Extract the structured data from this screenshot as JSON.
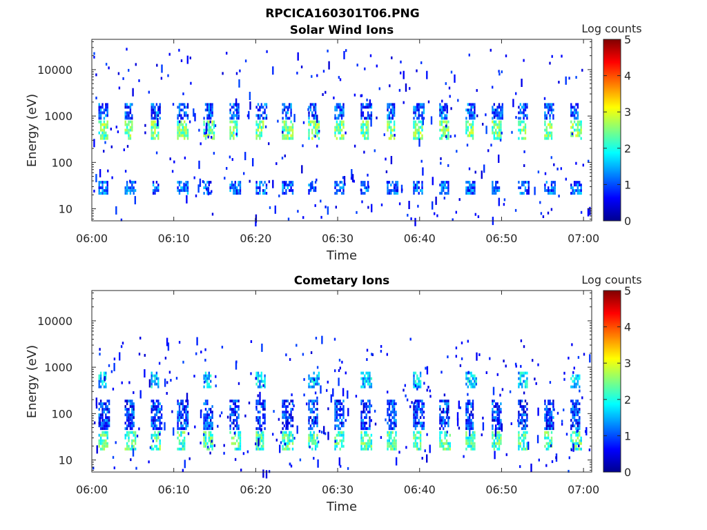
{
  "figure": {
    "title": "RPCICA160301T06.PNG"
  },
  "chart_data": [
    {
      "type": "heatmap",
      "title": "Solar Wind Ions",
      "xlabel": "Time",
      "ylabel": "Energy (eV)",
      "x_tick_labels": [
        "06:00",
        "06:10",
        "06:20",
        "06:30",
        "06:40",
        "06:50",
        "07:00"
      ],
      "x_tick_minutes": [
        0,
        10,
        20,
        30,
        40,
        50,
        60
      ],
      "xlim_minutes": [
        0,
        61
      ],
      "y_scale": "log",
      "y_tick_labels": [
        "10",
        "100",
        "1000",
        "10000"
      ],
      "y_tick_values": [
        10,
        100,
        1000,
        10000
      ],
      "ylim": [
        5.5,
        45000
      ],
      "colorbar": {
        "label": "Log counts",
        "range": [
          0,
          5
        ],
        "tick_labels": [
          "0",
          "1",
          "2",
          "3",
          "4",
          "5"
        ],
        "colormap": "jet"
      },
      "scan_period_minutes": 3.2,
      "blocks": [
        {
          "e_lo": 22,
          "e_hi": 40,
          "level": 1.1,
          "repeat": "all"
        },
        {
          "e_lo": 350,
          "e_hi": 800,
          "level": 2.4,
          "repeat": "all"
        },
        {
          "e_lo": 900,
          "e_hi": 1900,
          "level": 1.0,
          "repeat": "all"
        }
      ],
      "sparse_energy_range": [
        6,
        30000
      ],
      "sparse_level": 0.4
    },
    {
      "type": "heatmap",
      "title": "Cometary Ions",
      "xlabel": "Time",
      "ylabel": "Energy (eV)",
      "x_tick_labels": [
        "06:00",
        "06:10",
        "06:20",
        "06:30",
        "06:40",
        "06:50",
        "07:00"
      ],
      "x_tick_minutes": [
        0,
        10,
        20,
        30,
        40,
        50,
        60
      ],
      "xlim_minutes": [
        0,
        61
      ],
      "y_scale": "log",
      "y_tick_labels": [
        "10",
        "100",
        "1000",
        "10000"
      ],
      "y_tick_values": [
        10,
        100,
        1000,
        10000
      ],
      "ylim": [
        5.5,
        45000
      ],
      "colorbar": {
        "label": "Log counts",
        "range": [
          0,
          5
        ],
        "tick_labels": [
          "0",
          "1",
          "2",
          "3",
          "4",
          "5"
        ],
        "colormap": "jet"
      },
      "scan_period_minutes": 3.2,
      "blocks": [
        {
          "e_lo": 18,
          "e_hi": 42,
          "level": 2.2,
          "repeat": "all"
        },
        {
          "e_lo": 45,
          "e_hi": 200,
          "level": 0.9,
          "repeat": "all"
        },
        {
          "e_lo": 400,
          "e_hi": 800,
          "level": 1.6,
          "repeat": "some"
        }
      ],
      "sparse_energy_range": [
        6,
        5000
      ],
      "sparse_level": 0.4
    }
  ]
}
